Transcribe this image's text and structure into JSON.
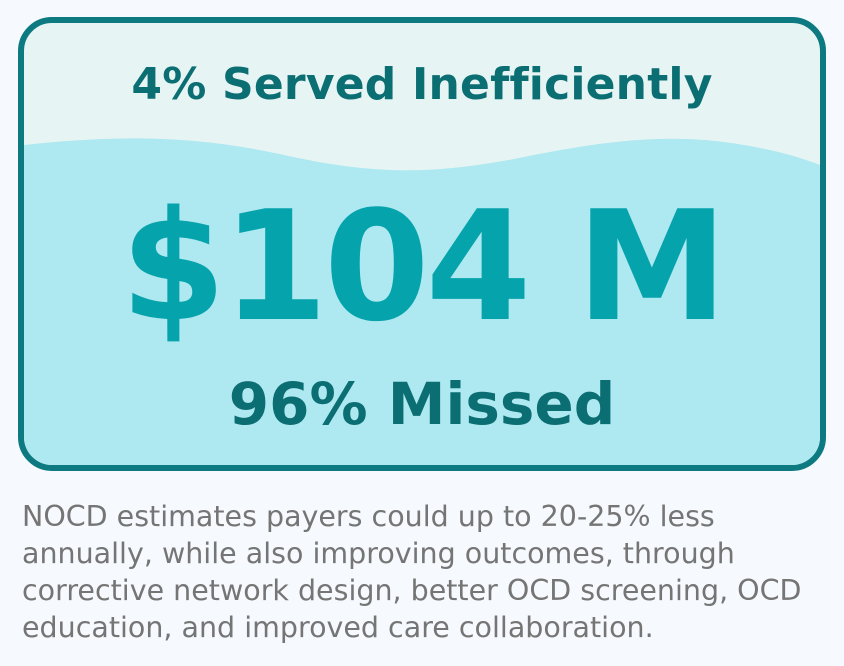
{
  "card": {
    "served_label": "4% Served Inefficiently",
    "amount": "$104 M",
    "missed_label": "96% Missed",
    "colors": {
      "border": "#0c7a80",
      "top_background": "#e7f4f4",
      "wave_fill": "#aee8f0",
      "amount_text": "#05a3ac",
      "label_text": "#0b6e73"
    },
    "fill_fraction_missed": 0.96
  },
  "description": "NOCD estimates payers could up to 20-25% less annually, while also improving outcomes, through corrective network design, better OCD screening, OCD education, and improved care collaboration."
}
